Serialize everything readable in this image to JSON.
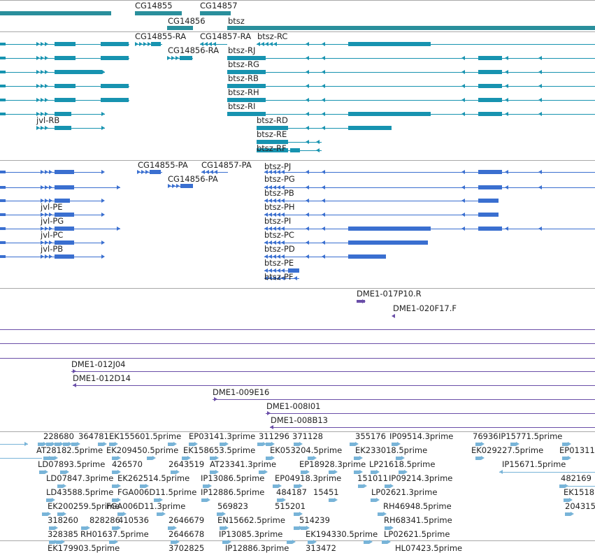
{
  "colors": {
    "gene": "#2a8f9c",
    "transcript": "#1793b0",
    "protein": "#3a6fd0",
    "clone": "#6a4ea8",
    "est": "#78b4d8",
    "divider": "#a8a8a8"
  },
  "gene_labels": [
    "CG14855",
    "CG14856",
    "CG14857",
    "btsz"
  ],
  "transcript_labels": [
    "CG14855-RA",
    "CG14857-RA",
    "btsz-RC",
    "CG14856-RA",
    "btsz-RJ",
    "btsz-RG",
    "btsz-RB",
    "btsz-RH",
    "btsz-RI",
    "jvl-RB",
    "btsz-RD",
    "btsz-RE",
    "btsz-RF"
  ],
  "protein_labels": [
    "CG14855-PA",
    "CG14857-PA",
    "btsz-PJ",
    "CG14856-PA",
    "btsz-PG",
    "btsz-PB",
    "jvl-PE",
    "btsz-PH",
    "jvl-PG",
    "btsz-PI",
    "jvl-PC",
    "btsz-PC",
    "jvl-PB",
    "btsz-PD",
    "btsz-PE",
    "btsz-PF"
  ],
  "clone_labels": [
    "DME1-017P10.R",
    "DME1-020F17.F",
    "DME1-012J04",
    "DME1-012D14",
    "DME1-009E16",
    "DME1-008I01",
    "DME1-008B13"
  ],
  "est_labels": [
    "228680",
    "364781",
    "EK155601.5prime",
    "EP03141.3prime",
    "311296",
    "371128",
    "355176",
    "IP09514.3prime",
    "76936",
    "IP15771.5prime",
    "AT28182.5prime",
    "EK209450.5prime",
    "EK158653.5prime",
    "EK053204.5prime",
    "EK233018.5prime",
    "EK029227.5prime",
    "EP01311",
    "LD07893.5prime",
    "426570",
    "2643519",
    "AT23341.3prime",
    "EP18928.3prime",
    "LP21618.5prime",
    "IP15671.5prime",
    "LD07847.3prime",
    "EK262514.5prime",
    "IP13086.5prime",
    "EP04918.3prime",
    "151011",
    "IP09214.3prime",
    "482169",
    "LD43588.5prime",
    "FGA006D11.5prime",
    "IP12886.5prime",
    "484187",
    "15451",
    "LP02621.3prime",
    "EK1518",
    "EK200259.5prime",
    "FGA006D11.3prime",
    "569823",
    "515201",
    "RH46948.5prime",
    "204315",
    "318260",
    "828286",
    "410536",
    "2646679",
    "EN15662.5prime",
    "514239",
    "RH68341.5prime",
    "328385",
    "RH01637.5prime",
    "2646678",
    "IP13085.3prime",
    "EK194330.5prime",
    "LP02621.5prime",
    "EK179903.5prime",
    "3702825",
    "IP12886.3prime",
    "313472",
    "HL07423.5prime"
  ]
}
